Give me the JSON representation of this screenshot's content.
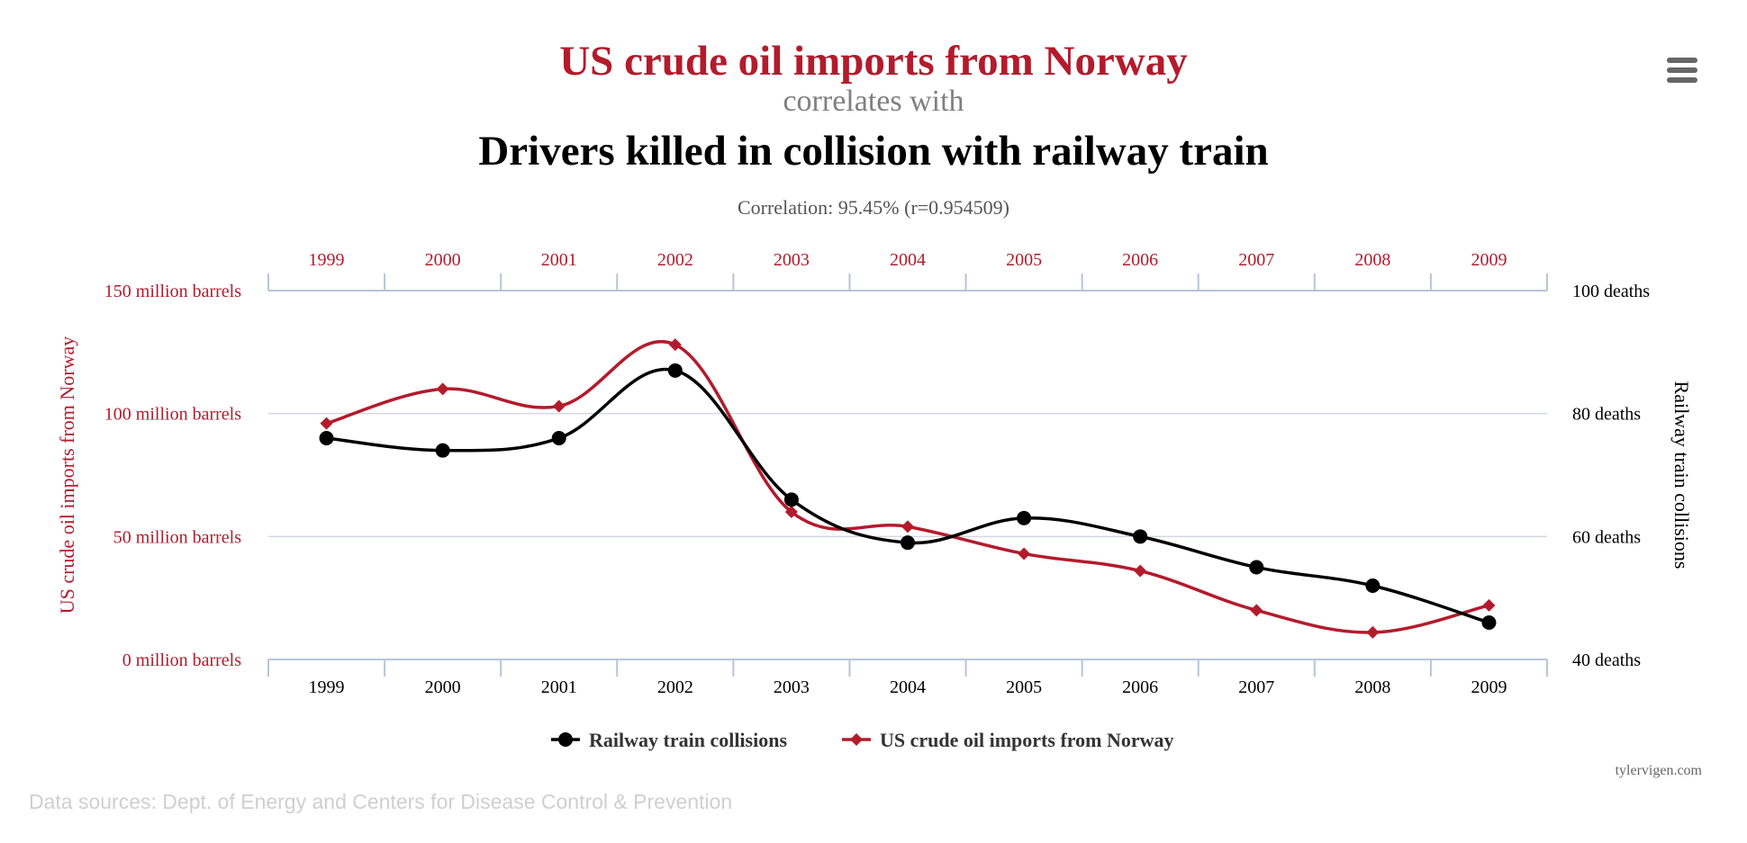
{
  "title_primary": "US crude oil imports from Norway",
  "title_connector": "correlates with",
  "title_secondary": "Drivers killed in collision with railway train",
  "correlation_text": "Correlation: 95.45% (r=0.954509)",
  "menu_icon": "hamburger-menu-icon",
  "credit": "tylervigen.com",
  "sources": "Data sources: Dept. of Energy and Centers for Disease Control & Prevention",
  "colors": {
    "red": "#b31b2c",
    "black": "#000000",
    "grid": "#d2d8e2",
    "axis": "#b7c5d8",
    "menu": "#666666",
    "muted": "#666666"
  },
  "chart_data": {
    "type": "line",
    "x": [
      "1999",
      "2000",
      "2001",
      "2002",
      "2003",
      "2004",
      "2005",
      "2006",
      "2007",
      "2008",
      "2009"
    ],
    "y_left_ticks": [
      "0 million barrels",
      "50 million barrels",
      "100 million barrels",
      "150 million barrels"
    ],
    "y_left_range": [
      0,
      150
    ],
    "y_left_label": "US crude oil imports from Norway",
    "y_right_ticks": [
      "40 deaths",
      "60 deaths",
      "80 deaths",
      "100 deaths"
    ],
    "y_right_range": [
      40,
      100
    ],
    "y_right_label": "Railway train collisions",
    "grid": true,
    "legend_position": "bottom-center",
    "series": [
      {
        "name": "Railway train collisions",
        "axis": "right",
        "color": "#000000",
        "marker": "circle",
        "values": [
          76,
          74,
          76,
          87,
          66,
          59,
          63,
          60,
          55,
          52,
          46
        ]
      },
      {
        "name": "US crude oil imports from Norway",
        "axis": "left",
        "color": "#b31b2c",
        "marker": "diamond",
        "values": [
          96,
          110,
          103,
          128,
          60,
          54,
          43,
          36,
          20,
          11,
          22
        ]
      }
    ]
  }
}
